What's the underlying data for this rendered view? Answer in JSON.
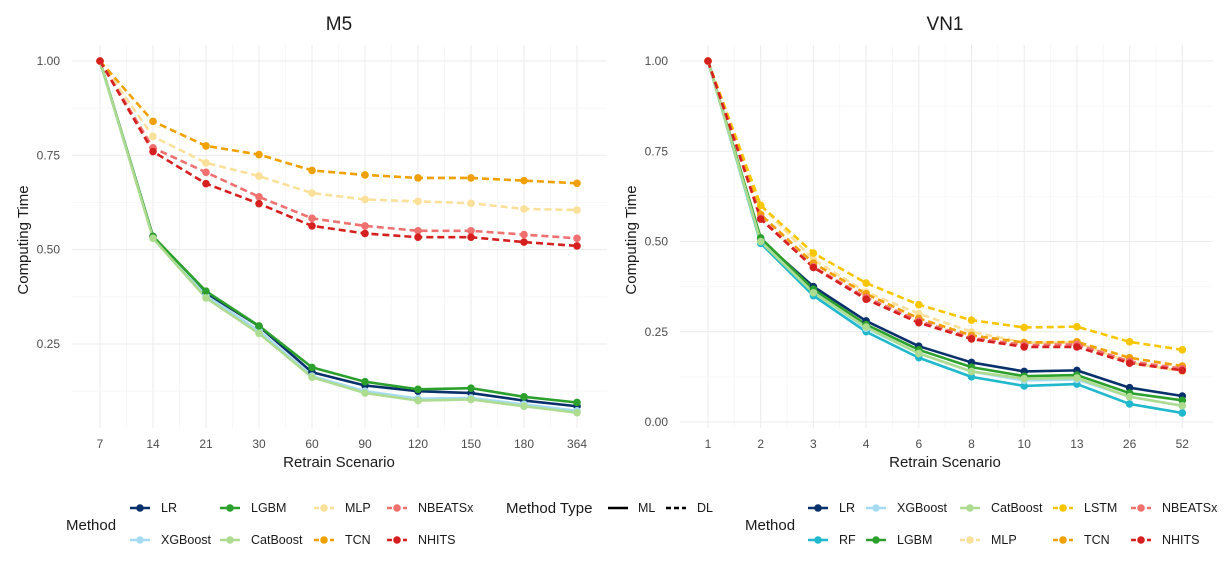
{
  "chart_data": [
    {
      "type": "line",
      "title": "M5",
      "xlabel": "Retrain Scenario",
      "ylabel": "Computing Time",
      "categories": [
        "7",
        "14",
        "21",
        "30",
        "60",
        "90",
        "120",
        "150",
        "180",
        "364"
      ],
      "yticks": [
        "0.25",
        "0.50",
        "0.75",
        "1.00"
      ],
      "ytick_values": [
        0.25,
        0.5,
        0.75,
        1.0
      ],
      "ylim": [
        0.05,
        1.03
      ],
      "grid": true,
      "series": [
        {
          "name": "LR",
          "type": "ML",
          "color": "#08306b",
          "values": [
            1.0,
            0.535,
            0.385,
            0.297,
            0.175,
            0.14,
            0.125,
            0.12,
            0.1,
            0.085
          ]
        },
        {
          "name": "XGBoost",
          "type": "ML",
          "color": "#a6dbf2",
          "values": [
            1.0,
            0.532,
            0.378,
            0.285,
            0.165,
            0.125,
            0.105,
            0.107,
            0.09,
            0.073
          ]
        },
        {
          "name": "LGBM",
          "type": "ML",
          "color": "#2ca02c",
          "values": [
            1.0,
            0.535,
            0.39,
            0.298,
            0.188,
            0.15,
            0.13,
            0.133,
            0.11,
            0.095
          ]
        },
        {
          "name": "CatBoost",
          "type": "ML",
          "color": "#addc91",
          "values": [
            1.0,
            0.53,
            0.372,
            0.278,
            0.162,
            0.12,
            0.1,
            0.103,
            0.085,
            0.068
          ]
        },
        {
          "name": "MLP",
          "type": "DL",
          "color": "#fbe09a",
          "values": [
            1.0,
            0.8,
            0.73,
            0.695,
            0.65,
            0.633,
            0.628,
            0.623,
            0.608,
            0.605
          ]
        },
        {
          "name": "TCN",
          "type": "DL",
          "color": "#f0a000",
          "values": [
            1.0,
            0.84,
            0.775,
            0.752,
            0.71,
            0.698,
            0.69,
            0.69,
            0.683,
            0.676
          ]
        },
        {
          "name": "NBEATSx",
          "type": "DL",
          "color": "#f07070",
          "values": [
            1.0,
            0.77,
            0.705,
            0.64,
            0.583,
            0.563,
            0.55,
            0.55,
            0.54,
            0.53
          ]
        },
        {
          "name": "NHITS",
          "type": "DL",
          "color": "#d62020",
          "values": [
            1.0,
            0.76,
            0.675,
            0.622,
            0.563,
            0.543,
            0.533,
            0.533,
            0.52,
            0.51
          ]
        }
      ]
    },
    {
      "type": "line",
      "title": "VN1",
      "xlabel": "Retrain Scenario",
      "ylabel": "Computing Time",
      "categories": [
        "1",
        "2",
        "3",
        "4",
        "6",
        "8",
        "10",
        "13",
        "26",
        "52"
      ],
      "yticks": [
        "0.00",
        "0.25",
        "0.50",
        "0.75",
        "1.00"
      ],
      "ytick_values": [
        0.0,
        0.25,
        0.5,
        0.75,
        1.0
      ],
      "ylim": [
        -0.03,
        1.03
      ],
      "grid": true,
      "series": [
        {
          "name": "LR",
          "type": "ML",
          "color": "#08306b",
          "values": [
            1.0,
            0.505,
            0.375,
            0.28,
            0.21,
            0.165,
            0.14,
            0.143,
            0.095,
            0.072
          ]
        },
        {
          "name": "RF",
          "type": "ML",
          "color": "#20b8cc",
          "values": [
            1.0,
            0.495,
            0.35,
            0.25,
            0.178,
            0.125,
            0.1,
            0.105,
            0.05,
            0.025
          ]
        },
        {
          "name": "XGBoost",
          "type": "ML",
          "color": "#a6dbf2",
          "values": [
            1.0,
            0.5,
            0.36,
            0.26,
            0.19,
            0.14,
            0.115,
            0.118,
            0.07,
            0.045
          ]
        },
        {
          "name": "LGBM",
          "type": "ML",
          "color": "#2ca02c",
          "values": [
            1.0,
            0.51,
            0.368,
            0.27,
            0.2,
            0.152,
            0.127,
            0.13,
            0.08,
            0.06
          ]
        },
        {
          "name": "CatBoost",
          "type": "ML",
          "color": "#addc91",
          "values": [
            1.0,
            0.5,
            0.358,
            0.263,
            0.19,
            0.14,
            0.12,
            0.122,
            0.07,
            0.045
          ]
        },
        {
          "name": "MLP",
          "type": "DL",
          "color": "#fbe09a",
          "values": [
            1.0,
            0.6,
            0.45,
            0.36,
            0.3,
            0.25,
            0.22,
            0.22,
            0.165,
            0.14
          ]
        },
        {
          "name": "LSTM",
          "type": "DL",
          "color": "#f7c600",
          "values": [
            1.0,
            0.6,
            0.468,
            0.385,
            0.325,
            0.282,
            0.262,
            0.264,
            0.222,
            0.2
          ]
        },
        {
          "name": "TCN",
          "type": "DL",
          "color": "#f0a000",
          "values": [
            1.0,
            0.575,
            0.44,
            0.355,
            0.287,
            0.24,
            0.22,
            0.222,
            0.178,
            0.155
          ]
        },
        {
          "name": "NBEATSx",
          "type": "DL",
          "color": "#f07070",
          "values": [
            1.0,
            0.565,
            0.43,
            0.345,
            0.28,
            0.233,
            0.213,
            0.215,
            0.168,
            0.148
          ]
        },
        {
          "name": "NHITS",
          "type": "DL",
          "color": "#d62020",
          "values": [
            1.0,
            0.562,
            0.428,
            0.34,
            0.275,
            0.23,
            0.208,
            0.208,
            0.163,
            0.143
          ]
        }
      ]
    }
  ],
  "legends": [
    {
      "title": "Method",
      "rows": [
        [
          "LR",
          "LGBM",
          "MLP",
          "NBEATSx"
        ],
        [
          "XGBoost",
          "CatBoost",
          "TCN",
          "NHITS"
        ]
      ],
      "type_legend": {
        "title": "Method Type",
        "ml_label": "ML",
        "dl_label": "DL"
      }
    },
    {
      "title": "Method",
      "rows": [
        [
          "LR",
          "XGBoost",
          "CatBoost",
          "LSTM",
          "NBEATSx"
        ],
        [
          "RF",
          "LGBM",
          "MLP",
          "TCN",
          "NHITS"
        ]
      ]
    }
  ]
}
